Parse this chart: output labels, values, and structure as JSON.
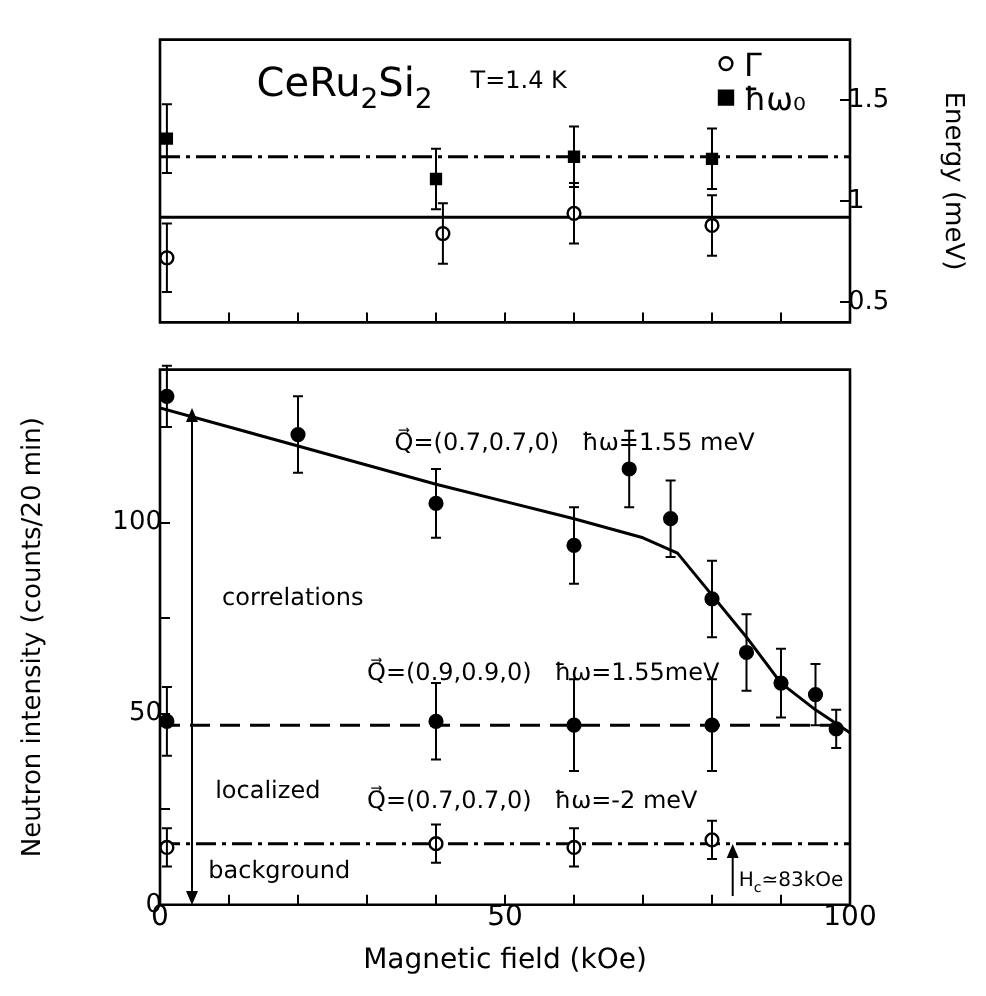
{
  "chart_data": [
    {
      "type": "scatter",
      "ylabel": "Energy (meV)",
      "xlim": [
        0,
        100
      ],
      "xticks": [
        {
          "value": 0,
          "label": null
        },
        {
          "value": 10,
          "label": null
        },
        {
          "value": 20,
          "label": null
        },
        {
          "value": 30,
          "label": null
        },
        {
          "value": 40,
          "label": null
        },
        {
          "value": 50,
          "label": null
        },
        {
          "value": 60,
          "label": null
        },
        {
          "value": 70,
          "label": null
        },
        {
          "value": 80,
          "label": null
        },
        {
          "value": 90,
          "label": null
        },
        {
          "value": 100,
          "label": null
        }
      ],
      "ylim": [
        0.4,
        1.8
      ],
      "yticks": [
        0.5,
        1,
        1.5
      ],
      "tick_labels": "y",
      "grid": false,
      "legend": "top right",
      "annotations": [
        "CeRu$_{2}$Si$_{2}$",
        "T=1.4 K"
      ],
      "series": [
        {
          "name": "Γ",
          "type": "scatter",
          "color": "#000000",
          "marker": "circle-open",
          "x": [
            1,
            41,
            60,
            80
          ],
          "values": [
            0.72,
            0.84,
            0.94,
            0.88
          ],
          "errors": [
            0.17,
            0.15,
            0.15,
            0.15
          ]
        },
        {
          "name": "ħω₀",
          "type": "scatter",
          "color": "#000000",
          "marker": "square",
          "x": [
            1,
            40,
            60,
            80
          ],
          "values": [
            1.31,
            1.11,
            1.22,
            1.21
          ],
          "errors": [
            0.17,
            0.15,
            0.15,
            0.15
          ]
        },
        {
          "type": "line",
          "color": "#000000",
          "line_style": "solid",
          "marker": "none",
          "x": [
            0,
            100
          ],
          "values": [
            0.92,
            0.92
          ]
        },
        {
          "type": "line",
          "color": "#000000",
          "line_style": "dotted",
          "marker": "none",
          "x": [
            0,
            100
          ],
          "values": [
            1.22,
            1.22
          ]
        }
      ]
    },
    {
      "type": "scatter",
      "xlabel": "Magnetic field (kOe)",
      "ylabel": "Neutron intensity (counts/20 min)",
      "xlim": [
        0,
        100
      ],
      "xticks": [
        0,
        {
          "value": 10,
          "label": null
        },
        {
          "value": 20,
          "label": null
        },
        {
          "value": 30,
          "label": null
        },
        {
          "value": 40,
          "label": null
        },
        50,
        {
          "value": 60,
          "label": null
        },
        {
          "value": 70,
          "label": null
        },
        {
          "value": 80,
          "label": null
        },
        {
          "value": 90,
          "label": null
        },
        100
      ],
      "ylim": [
        0,
        140
      ],
      "yticks": [
        0,
        {
          "value": 25,
          "label": null
        },
        50,
        {
          "value": 75,
          "label": null
        },
        100,
        {
          "value": 125,
          "label": null
        }
      ],
      "grid": false,
      "legend": false,
      "annotations": [
        "Q⃗=(0.7,0.7,0)   ħω=1.55 meV",
        "correlations",
        "Q⃗=(0.9,0.9,0)   ħω=1.55meV",
        "localized",
        "Q⃗=(0.7,0.7,0)   ħω=-2 meV",
        "background",
        "H$_{c}$≃83kOe"
      ],
      "series": [
        {
          "type": "scatter",
          "color": "#000000",
          "marker": "circle",
          "x": [
            1,
            20,
            40,
            60,
            68,
            74,
            80,
            85,
            90,
            95,
            98
          ],
          "values": [
            133,
            123,
            105,
            94,
            114,
            101,
            80,
            66,
            58,
            55,
            46
          ],
          "errors": [
            8,
            10,
            9,
            10,
            10,
            10,
            10,
            10,
            9,
            8,
            5
          ]
        },
        {
          "type": "line",
          "color": "#000000",
          "line_style": "solid",
          "marker": "none",
          "x": [
            0,
            20,
            40,
            60,
            70,
            75,
            80,
            85,
            90,
            95,
            100
          ],
          "values": [
            130,
            120,
            110,
            101,
            96,
            92,
            81,
            70,
            58,
            51,
            45
          ]
        },
        {
          "type": "scatter",
          "color": "#000000",
          "marker": "circle",
          "x": [
            1,
            40,
            60,
            80
          ],
          "values": [
            48,
            48,
            47,
            47
          ],
          "errors": [
            9,
            10,
            12,
            12
          ]
        },
        {
          "type": "line",
          "color": "#000000",
          "line_style": "dashed",
          "marker": "none",
          "x": [
            0,
            100
          ],
          "values": [
            47,
            47
          ]
        },
        {
          "type": "scatter",
          "color": "#000000",
          "marker": "circle-open",
          "x": [
            1,
            40,
            60,
            80
          ],
          "values": [
            15,
            16,
            15,
            17
          ],
          "errors": [
            5,
            5,
            5,
            5
          ]
        },
        {
          "type": "line",
          "color": "#000000",
          "line_style": "dotted",
          "marker": "none",
          "x": [
            0,
            100
          ],
          "values": [
            16,
            16
          ]
        }
      ]
    }
  ]
}
